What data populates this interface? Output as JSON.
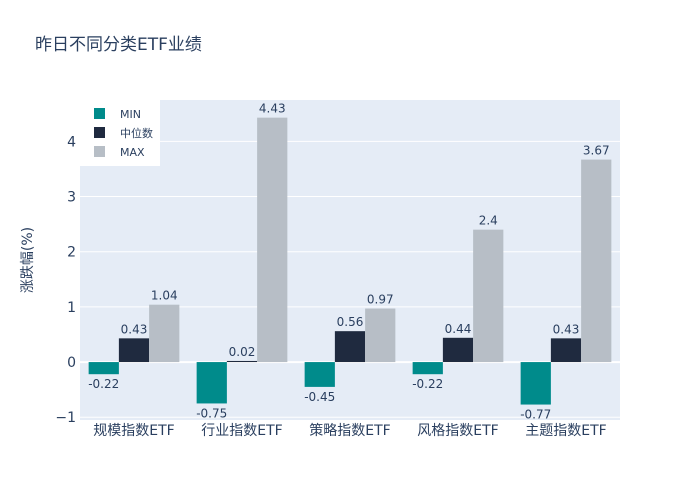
{
  "chart_data": {
    "type": "bar",
    "title": "昨日不同分类ETF业绩",
    "xlabel": "",
    "ylabel": "涨跌幅(%)",
    "categories": [
      "规模指数ETF",
      "行业指数ETF",
      "策略指数ETF",
      "风格指数ETF",
      "主题指数ETF"
    ],
    "series": [
      {
        "name": "MIN",
        "color": "#008b8b",
        "values": [
          -0.22,
          -0.75,
          -0.45,
          -0.22,
          -0.77
        ],
        "labels": [
          "-0.22",
          "-0.75",
          "-0.45",
          "-0.22",
          "-0.77"
        ]
      },
      {
        "name": "中位数",
        "color": "#1f2a3f",
        "values": [
          0.43,
          0.02,
          0.56,
          0.44,
          0.43
        ],
        "labels": [
          "0.43",
          "0.02",
          "0.56",
          "0.44",
          "0.43"
        ]
      },
      {
        "name": "MAX",
        "color": "#b7bec6",
        "values": [
          1.04,
          4.43,
          0.97,
          2.4,
          3.67
        ],
        "labels": [
          "1.04",
          "4.43",
          "0.97",
          "2.4",
          "3.67"
        ]
      }
    ],
    "ylim": [
      -1.05,
      4.75
    ],
    "yticks": [
      -1,
      0,
      1,
      2,
      3,
      4
    ],
    "ytick_labels": [
      "−1",
      "0",
      "1",
      "2",
      "3",
      "4"
    ],
    "grid": true,
    "legend_position": "top-left",
    "plot_bg": "#e5ecf6"
  }
}
